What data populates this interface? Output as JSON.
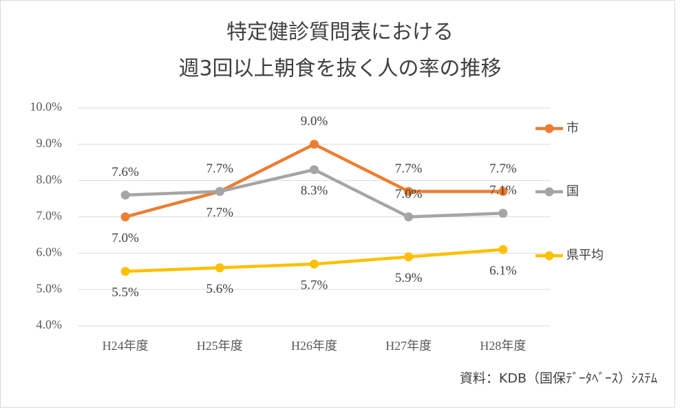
{
  "chart_data": {
    "type": "line",
    "title": [
      "特定健診質問表における",
      "週3回以上朝食を抜く人の率の推移"
    ],
    "categories": [
      "H24年度",
      "H25年度",
      "H26年度",
      "H27年度",
      "H28年度"
    ],
    "series": [
      {
        "name": "市",
        "color": "#ED7D31",
        "values": [
          7.0,
          7.7,
          9.0,
          7.7,
          7.7
        ],
        "value_labels": [
          "7.0%",
          "7.7%",
          "9.0%",
          "7.7%",
          "7.7%"
        ]
      },
      {
        "name": "国",
        "color": "#A5A5A5",
        "values": [
          7.6,
          7.7,
          8.3,
          7.0,
          7.1
        ],
        "value_labels": [
          "7.6%",
          "7.7%",
          "8.3%",
          "7.0%",
          "7.1%"
        ]
      },
      {
        "name": "県平均",
        "color": "#FFC000",
        "values": [
          5.5,
          5.6,
          5.7,
          5.9,
          6.1
        ],
        "value_labels": [
          "5.5%",
          "5.6%",
          "5.7%",
          "5.9%",
          "6.1%"
        ]
      }
    ],
    "ylim": [
      4,
      10
    ],
    "yticks": [
      {
        "value": 4,
        "label": "4.0%"
      },
      {
        "value": 5,
        "label": "5.0%"
      },
      {
        "value": 6,
        "label": "6.0%"
      },
      {
        "value": 7,
        "label": "7.0%"
      },
      {
        "value": 8,
        "label": "8.0%"
      },
      {
        "value": 9,
        "label": "9.0%"
      },
      {
        "value": 10,
        "label": "10.0%"
      }
    ],
    "grid": true,
    "legend": "right",
    "source": "資料：KDB（国保ﾃﾞｰﾀﾍﾞｰｽ）ｼｽﾃﾑ"
  }
}
